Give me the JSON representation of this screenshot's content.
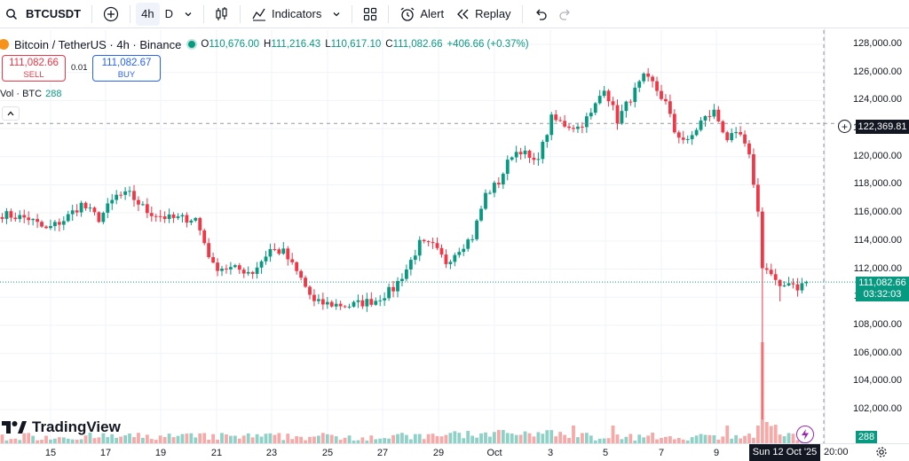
{
  "toolbar": {
    "symbol": "BTCUSDT",
    "interval_active": "4h",
    "interval_other": "D",
    "indicators_label": "Indicators",
    "alert_label": "Alert",
    "replay_label": "Replay"
  },
  "legend": {
    "title": "Bitcoin / TetherUS · 4h · Binance",
    "open_key": "O",
    "open": "110,676.00",
    "high_key": "H",
    "high": "111,216.43",
    "low_key": "L",
    "low": "110,617.10",
    "close_key": "C",
    "close": "111,082.66",
    "change": "+406.66 (+0.37%)"
  },
  "trade": {
    "sell_price": "111,082.66",
    "sell_label": "SELL",
    "spread": "0.01",
    "buy_price": "111,082.67",
    "buy_label": "BUY"
  },
  "volume_legend": {
    "label": "Vol · BTC",
    "value": "288"
  },
  "brand": {
    "name": "TradingView"
  },
  "price_tags": {
    "crosshair": "122,369.81",
    "last": "111,082.66",
    "countdown": "03:32:03",
    "volume": "288"
  },
  "time_axis": {
    "cursor_label": "Sun 12 Oct '25",
    "cursor_time": "20:00"
  },
  "colors": {
    "up": "#089981",
    "down": "#f23645",
    "up_vol": "#8fd1c6",
    "down_vol": "#f7a9a7",
    "accent": "#2962ff"
  },
  "icons": [
    "search-icon",
    "plus-circle-icon",
    "chevron-down-icon",
    "candles-icon",
    "indicators-icon",
    "layouts-icon",
    "alarm-clock-icon",
    "replay-icon",
    "undo-icon",
    "redo-icon",
    "bitcoin-icon",
    "gear-icon",
    "bolt-icon",
    "tradingview-logo"
  ],
  "chart_data": {
    "type": "candlestick",
    "interval": "4h",
    "y_axis": {
      "ticks": [
        102000,
        104000,
        106000,
        108000,
        110000,
        112000,
        114000,
        116000,
        118000,
        120000,
        122000,
        124000,
        126000,
        128000
      ],
      "range": [
        100500,
        128800
      ]
    },
    "x_axis": {
      "ticks": [
        "15",
        "17",
        "19",
        "21",
        "23",
        "25",
        "27",
        "29",
        "Oct",
        "3",
        "5",
        "7",
        "9"
      ]
    },
    "crosshair_price": 122369.81,
    "last_price": 111082.66,
    "anchors": [
      {
        "i": 0,
        "p": 115900
      },
      {
        "i": 6,
        "p": 115600
      },
      {
        "i": 10,
        "p": 114800
      },
      {
        "i": 14,
        "p": 115500
      },
      {
        "i": 18,
        "p": 116600
      },
      {
        "i": 22,
        "p": 115600
      },
      {
        "i": 26,
        "p": 117200
      },
      {
        "i": 29,
        "p": 117300
      },
      {
        "i": 33,
        "p": 116100
      },
      {
        "i": 35,
        "p": 115900
      },
      {
        "i": 38,
        "p": 115600
      },
      {
        "i": 44,
        "p": 115600
      },
      {
        "i": 48,
        "p": 112200
      },
      {
        "i": 53,
        "p": 112000
      },
      {
        "i": 57,
        "p": 111800
      },
      {
        "i": 61,
        "p": 113400
      },
      {
        "i": 64,
        "p": 113200
      },
      {
        "i": 68,
        "p": 111300
      },
      {
        "i": 71,
        "p": 109600
      },
      {
        "i": 75,
        "p": 109500
      },
      {
        "i": 79,
        "p": 109400
      },
      {
        "i": 85,
        "p": 109800
      },
      {
        "i": 89,
        "p": 110600
      },
      {
        "i": 92,
        "p": 112000
      },
      {
        "i": 95,
        "p": 113800
      },
      {
        "i": 98,
        "p": 113600
      },
      {
        "i": 101,
        "p": 112500
      },
      {
        "i": 104,
        "p": 113500
      },
      {
        "i": 107,
        "p": 114300
      },
      {
        "i": 110,
        "p": 117300
      },
      {
        "i": 113,
        "p": 118200
      },
      {
        "i": 116,
        "p": 120200
      },
      {
        "i": 118,
        "p": 120500
      },
      {
        "i": 121,
        "p": 119500
      },
      {
        "i": 123,
        "p": 120800
      },
      {
        "i": 125,
        "p": 122700
      },
      {
        "i": 128,
        "p": 122300
      },
      {
        "i": 131,
        "p": 122100
      },
      {
        "i": 134,
        "p": 123000
      },
      {
        "i": 137,
        "p": 125000
      },
      {
        "i": 140,
        "p": 122600
      },
      {
        "i": 143,
        "p": 124200
      },
      {
        "i": 146,
        "p": 125600
      },
      {
        "i": 148,
        "p": 125200
      },
      {
        "i": 151,
        "p": 123800
      },
      {
        "i": 153,
        "p": 121800
      },
      {
        "i": 156,
        "p": 121000
      },
      {
        "i": 159,
        "p": 122500
      },
      {
        "i": 162,
        "p": 123200
      },
      {
        "i": 165,
        "p": 121300
      },
      {
        "i": 168,
        "p": 121500
      },
      {
        "i": 170,
        "p": 119900
      },
      {
        "i": 171,
        "p": 118200
      },
      {
        "i": 172,
        "p": 116000
      },
      {
        "i": 173,
        "p": 112300
      },
      {
        "i": 175,
        "p": 111600
      },
      {
        "i": 177,
        "p": 110500
      },
      {
        "i": 179,
        "p": 111200
      },
      {
        "i": 181,
        "p": 110700
      },
      {
        "i": 183,
        "p": 111083
      }
    ]
  }
}
